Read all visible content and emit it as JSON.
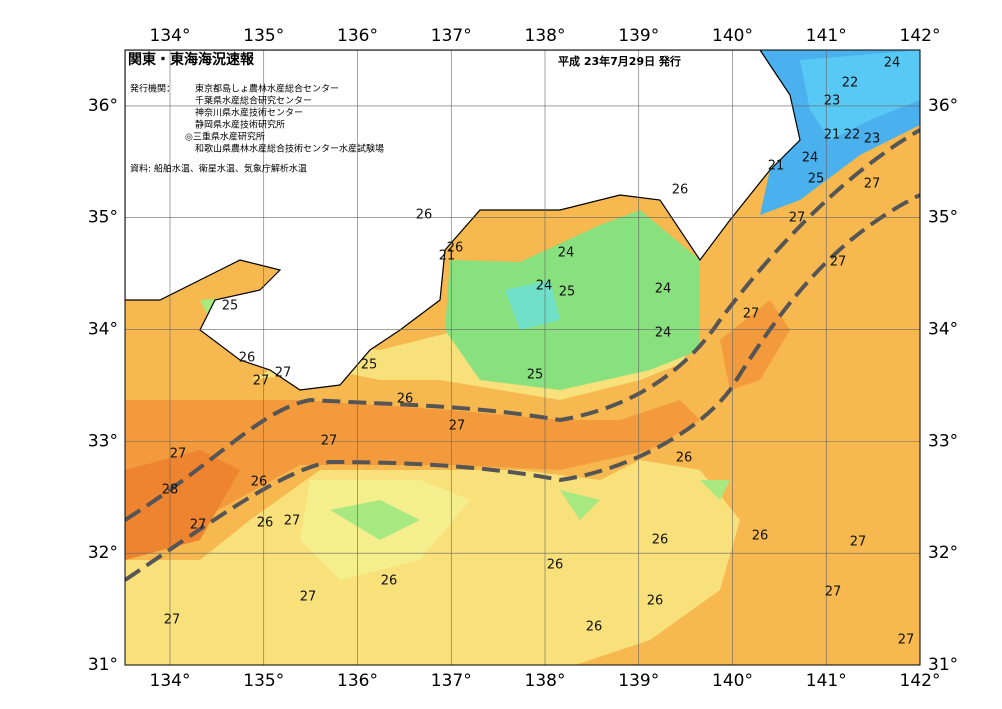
{
  "map": {
    "title": "関東・東海海況速報",
    "date": "平成 23年7月29日 発行",
    "issuers_label": "発行機関：",
    "issuers": [
      "東京都島しょ農林水産総合センター",
      "千葉県水産総合研究センター",
      "神奈川県水産技術センター",
      "静岡県水産技術研究所",
      "◎三重県水産研究所",
      "和歌山県農林水産総合技術センター水産試験場"
    ],
    "source": "資料: 船舶水温、衛星水温、気象庁解析水温",
    "lonlim": [
      133.52,
      142
    ],
    "latlim": [
      31,
      36.5
    ],
    "lon_ticks": [
      {
        "value": 134,
        "label": "134°"
      },
      {
        "value": 135,
        "label": "135°"
      },
      {
        "value": 136,
        "label": "136°"
      },
      {
        "value": 137,
        "label": "137°"
      },
      {
        "value": 138,
        "label": "138°"
      },
      {
        "value": 139,
        "label": "139°"
      },
      {
        "value": 140,
        "label": "140°"
      },
      {
        "value": 141,
        "label": "141°"
      },
      {
        "value": 142,
        "label": "142°"
      }
    ],
    "lat_ticks": [
      {
        "value": 31,
        "label": "31°"
      },
      {
        "value": 32,
        "label": "32°"
      },
      {
        "value": 33,
        "label": "33°"
      },
      {
        "value": 34,
        "label": "34°"
      },
      {
        "value": 35,
        "label": "35°"
      },
      {
        "value": 36,
        "label": "36°"
      }
    ],
    "contour_labels": [
      24,
      22,
      23,
      21,
      22,
      23,
      21,
      24,
      25,
      27,
      26,
      27,
      26,
      26,
      21,
      24,
      24,
      25,
      24,
      24,
      27,
      25,
      27,
      26,
      27,
      27,
      25,
      25,
      26,
      27,
      27,
      27,
      26,
      28,
      26,
      27,
      26,
      27,
      26,
      26,
      27,
      26,
      26,
      27,
      27,
      26,
      27,
      26,
      27
    ]
  }
}
